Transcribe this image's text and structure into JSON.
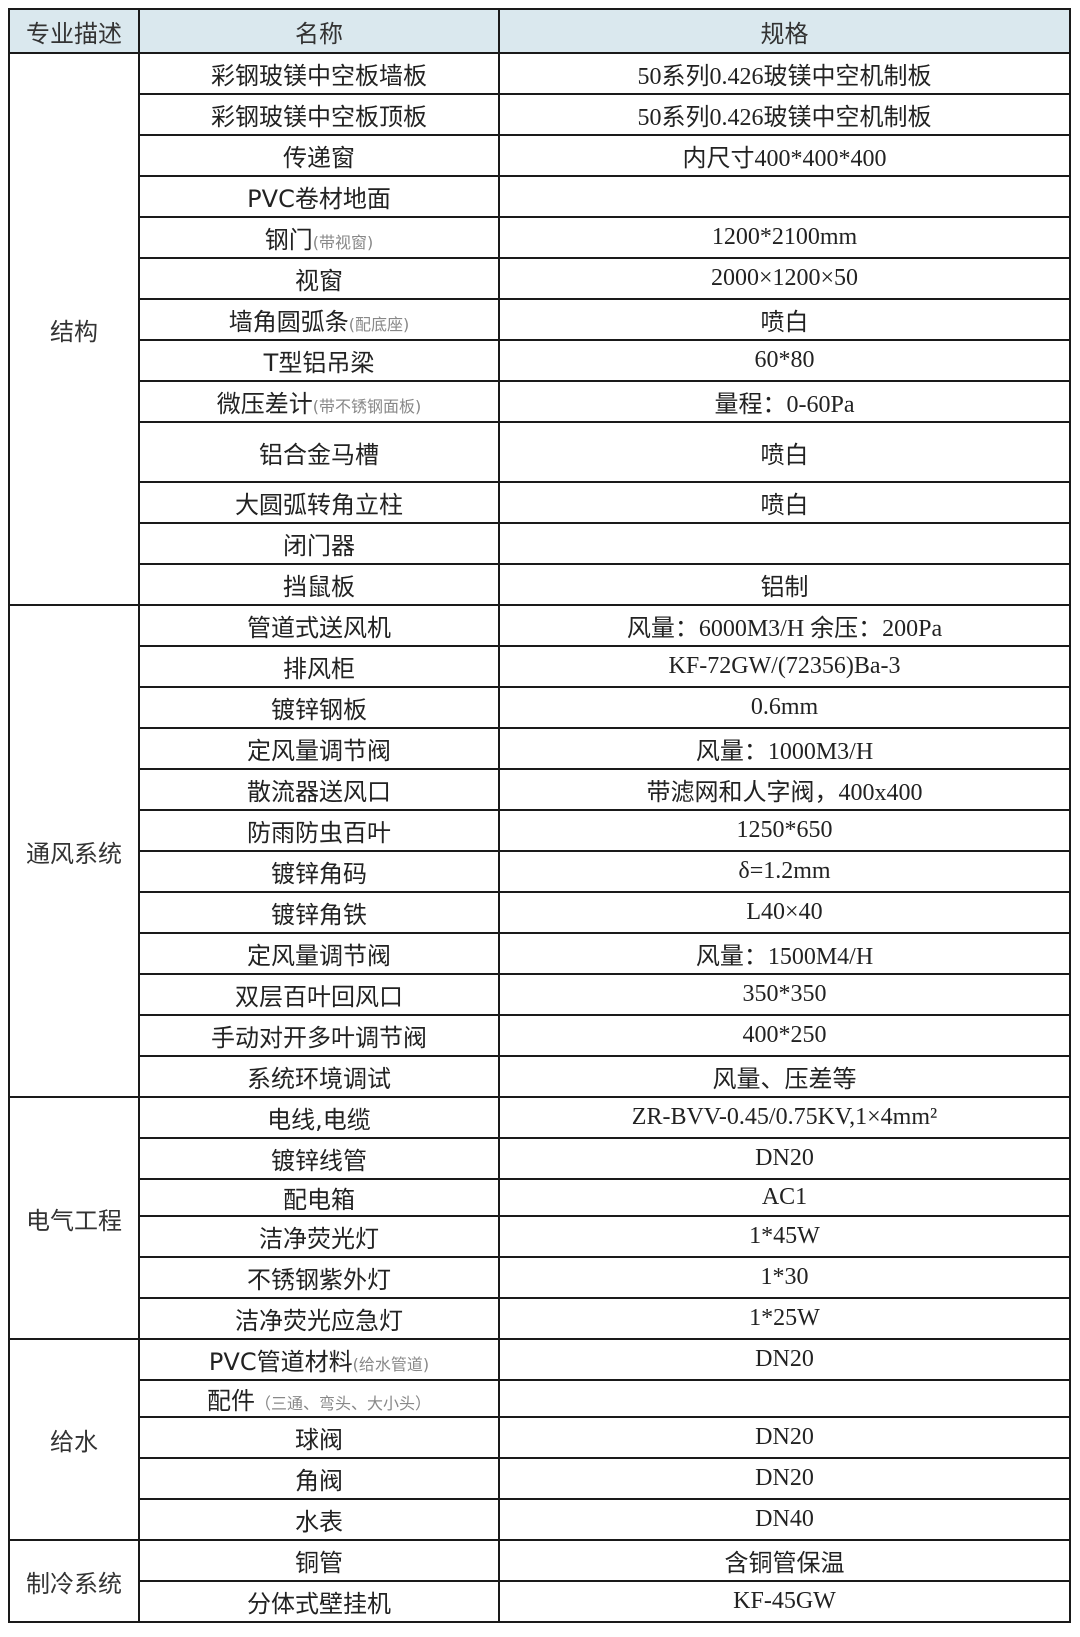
{
  "header": {
    "col1": "专业描述",
    "col2": "名称",
    "col3": "规格",
    "background": "#dae8ee"
  },
  "sections": [
    {
      "name": "结构",
      "rows": [
        {
          "name": "彩钢玻镁中空板墙板",
          "note": "",
          "spec": "50系列0.426玻镁中空机制板"
        },
        {
          "name": "彩钢玻镁中空板顶板",
          "note": "",
          "spec": "50系列0.426玻镁中空机制板"
        },
        {
          "name": "传递窗",
          "note": "",
          "spec": "内尺寸400*400*400"
        },
        {
          "name": "PVC卷材地面",
          "note": "",
          "spec": ""
        },
        {
          "name": "钢门",
          "note": "(带视窗)",
          "spec": "1200*2100mm"
        },
        {
          "name": "视窗",
          "note": "",
          "spec": "2000×1200×50"
        },
        {
          "name": "墙角圆弧条",
          "note": "(配底座)",
          "spec": "喷白"
        },
        {
          "name": "T型铝吊梁",
          "note": "",
          "spec": "60*80"
        },
        {
          "name": "微压差计",
          "note": "(带不锈钢面板)",
          "spec": "量程：0-60Pa"
        },
        {
          "name": "铝合金马槽",
          "note": "",
          "spec": "喷白"
        },
        {
          "name": "大圆弧转角立柱",
          "note": "",
          "spec": "喷白"
        },
        {
          "name": "闭门器",
          "note": "",
          "spec": ""
        },
        {
          "name": "挡鼠板",
          "note": "",
          "spec": "铝制"
        }
      ]
    },
    {
      "name": "通风系统",
      "rows": [
        {
          "name": "管道式送风机",
          "note": "",
          "spec": "风量：6000M3/H 余压：200Pa"
        },
        {
          "name": "排风柜",
          "note": "",
          "spec": "KF-72GW/(72356)Ba-3"
        },
        {
          "name": "镀锌钢板",
          "note": "",
          "spec": "0.6mm"
        },
        {
          "name": "定风量调节阀",
          "note": "",
          "spec": "风量：1000M3/H"
        },
        {
          "name": "散流器送风口",
          "note": "",
          "spec": "带滤网和人字阀，400x400"
        },
        {
          "name": "防雨防虫百叶",
          "note": "",
          "spec": "1250*650"
        },
        {
          "name": "镀锌角码",
          "note": "",
          "spec": "δ=1.2mm"
        },
        {
          "name": "镀锌角铁",
          "note": "",
          "spec": "L40×40"
        },
        {
          "name": "定风量调节阀",
          "note": "",
          "spec": "风量：1500M4/H"
        },
        {
          "name": "双层百叶回风口",
          "note": "",
          "spec": "350*350"
        },
        {
          "name": "手动对开多叶调节阀",
          "note": "",
          "spec": "400*250"
        },
        {
          "name": "系统环境调试",
          "note": "",
          "spec": "风量、压差等"
        }
      ]
    },
    {
      "name": "电气工程",
      "rows": [
        {
          "name": "电线,电缆",
          "note": "",
          "spec": "ZR-BVV-0.45/0.75KV,1×4mm²"
        },
        {
          "name": "镀锌线管",
          "note": "",
          "spec": "DN20"
        },
        {
          "name": "配电箱",
          "note": "",
          "spec": "AC1"
        },
        {
          "name": "洁净荧光灯",
          "note": "",
          "spec": "1*45W"
        },
        {
          "name": "不锈钢紫外灯",
          "note": "",
          "spec": "1*30"
        },
        {
          "name": "洁净荧光应急灯",
          "note": "",
          "spec": "1*25W"
        }
      ]
    },
    {
      "name": "给水",
      "rows": [
        {
          "name": "PVC管道材料",
          "note": "(给水管道)",
          "spec": "DN20"
        },
        {
          "name": "配件",
          "note": "（三通、弯头、大小头）",
          "spec": ""
        },
        {
          "name": "球阀",
          "note": "",
          "spec": "DN20"
        },
        {
          "name": "角阀",
          "note": "",
          "spec": "DN20"
        },
        {
          "name": "水表",
          "note": "",
          "spec": "DN40"
        }
      ]
    },
    {
      "name": "制冷系统",
      "rows": [
        {
          "name": "铜管",
          "note": "",
          "spec": "含铜管保温"
        },
        {
          "name": "分体式壁挂机",
          "note": "",
          "spec": "KF-45GW"
        }
      ]
    }
  ]
}
